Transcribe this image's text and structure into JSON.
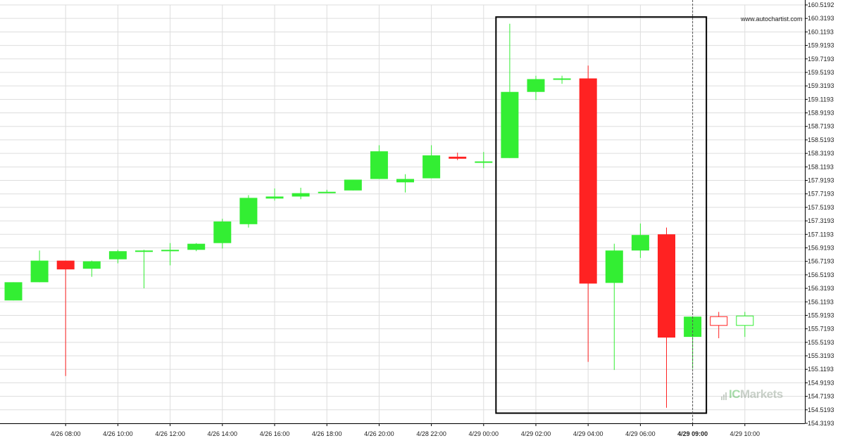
{
  "watermark": "www.autochartist.com",
  "brand": {
    "prefix": "IC",
    "suffix": "Markets"
  },
  "chart_data": {
    "type": "candlestick",
    "yticks": [
      "160.5192",
      "160.3193",
      "160.1193",
      "159.9193",
      "159.7193",
      "159.5193",
      "159.3193",
      "159.1193",
      "158.9193",
      "158.7193",
      "158.5193",
      "158.3193",
      "158.1193",
      "157.9193",
      "157.7193",
      "157.5193",
      "157.3193",
      "157.1193",
      "156.9193",
      "156.7193",
      "156.5193",
      "156.3193",
      "156.1193",
      "155.9193",
      "155.7193",
      "155.5193",
      "155.3193",
      "155.1193",
      "154.9193",
      "154.7193",
      "154.5193",
      "154.3193"
    ],
    "ylim": [
      154.3193,
      160.5192
    ],
    "xticks": [
      {
        "index": 2,
        "label": "4/26 08:00"
      },
      {
        "index": 4,
        "label": "4/26 10:00"
      },
      {
        "index": 6,
        "label": "4/26 12:00"
      },
      {
        "index": 8,
        "label": "4/26 14:00"
      },
      {
        "index": 10,
        "label": "4/26 16:00"
      },
      {
        "index": 12,
        "label": "4/26 18:00"
      },
      {
        "index": 14,
        "label": "4/26 20:00"
      },
      {
        "index": 16,
        "label": "4/28 22:00"
      },
      {
        "index": 18,
        "label": "4/29 00:00"
      },
      {
        "index": 20,
        "label": "4/29 02:00"
      },
      {
        "index": 22,
        "label": "4/29 04:00"
      },
      {
        "index": 24,
        "label": "4/29 06:00"
      },
      {
        "index": 26,
        "label": "4/29 09:00",
        "bold": true
      },
      {
        "index": 28,
        "label": "4/29 10:00"
      }
    ],
    "candles": [
      {
        "o": 156.14,
        "h": 156.41,
        "l": 156.14,
        "c": 156.41
      },
      {
        "o": 156.41,
        "h": 156.88,
        "l": 156.41,
        "c": 156.73
      },
      {
        "o": 156.73,
        "h": 156.73,
        "l": 155.02,
        "c": 156.6
      },
      {
        "o": 156.61,
        "h": 156.73,
        "l": 156.49,
        "c": 156.72
      },
      {
        "o": 156.75,
        "h": 156.89,
        "l": 156.69,
        "c": 156.87
      },
      {
        "o": 156.87,
        "h": 156.89,
        "l": 156.32,
        "c": 156.88
      },
      {
        "o": 156.88,
        "h": 156.99,
        "l": 156.66,
        "c": 156.89
      },
      {
        "o": 156.89,
        "h": 156.99,
        "l": 156.87,
        "c": 156.98
      },
      {
        "o": 156.99,
        "h": 157.35,
        "l": 156.91,
        "c": 157.31
      },
      {
        "o": 157.27,
        "h": 157.7,
        "l": 157.22,
        "c": 157.66
      },
      {
        "o": 157.65,
        "h": 157.8,
        "l": 157.62,
        "c": 157.68
      },
      {
        "o": 157.68,
        "h": 157.81,
        "l": 157.64,
        "c": 157.73
      },
      {
        "o": 157.74,
        "h": 157.78,
        "l": 157.73,
        "c": 157.75
      },
      {
        "o": 157.77,
        "h": 157.93,
        "l": 157.77,
        "c": 157.93
      },
      {
        "o": 157.94,
        "h": 158.44,
        "l": 157.94,
        "c": 158.35
      },
      {
        "o": 157.89,
        "h": 158.01,
        "l": 157.74,
        "c": 157.94
      },
      {
        "o": 157.95,
        "h": 158.44,
        "l": 157.95,
        "c": 158.29
      },
      {
        "o": 158.27,
        "h": 158.33,
        "l": 158.22,
        "c": 158.24
      },
      {
        "o": 158.2,
        "h": 158.34,
        "l": 158.1,
        "c": 158.2
      },
      {
        "o": 158.25,
        "h": 160.24,
        "l": 158.25,
        "c": 159.23
      },
      {
        "o": 159.23,
        "h": 159.47,
        "l": 159.11,
        "c": 159.42
      },
      {
        "o": 159.41,
        "h": 159.47,
        "l": 159.35,
        "c": 159.43
      },
      {
        "o": 159.43,
        "h": 159.62,
        "l": 155.23,
        "c": 156.39
      },
      {
        "o": 156.4,
        "h": 156.98,
        "l": 155.11,
        "c": 156.88
      },
      {
        "o": 156.88,
        "h": 157.28,
        "l": 156.77,
        "c": 157.11
      },
      {
        "o": 157.12,
        "h": 157.22,
        "l": 154.55,
        "c": 155.59
      },
      {
        "o": 155.6,
        "h": 155.9,
        "l": 155.13,
        "c": 155.9
      },
      {
        "o": 155.9,
        "h": 155.97,
        "l": 155.58,
        "c": 155.77,
        "hollow": true
      },
      {
        "o": 155.77,
        "h": 155.97,
        "l": 155.6,
        "c": 155.91,
        "hollow": true
      }
    ],
    "highlight": {
      "start_index": 19,
      "end_index": 26,
      "low": 154.47,
      "high": 160.34
    },
    "current_index": 26,
    "colors": {
      "up": "#33ee33",
      "down": "#ff2222",
      "grid": "#dddddd",
      "box": "#000000",
      "axis": "#000000"
    },
    "grid": true
  }
}
